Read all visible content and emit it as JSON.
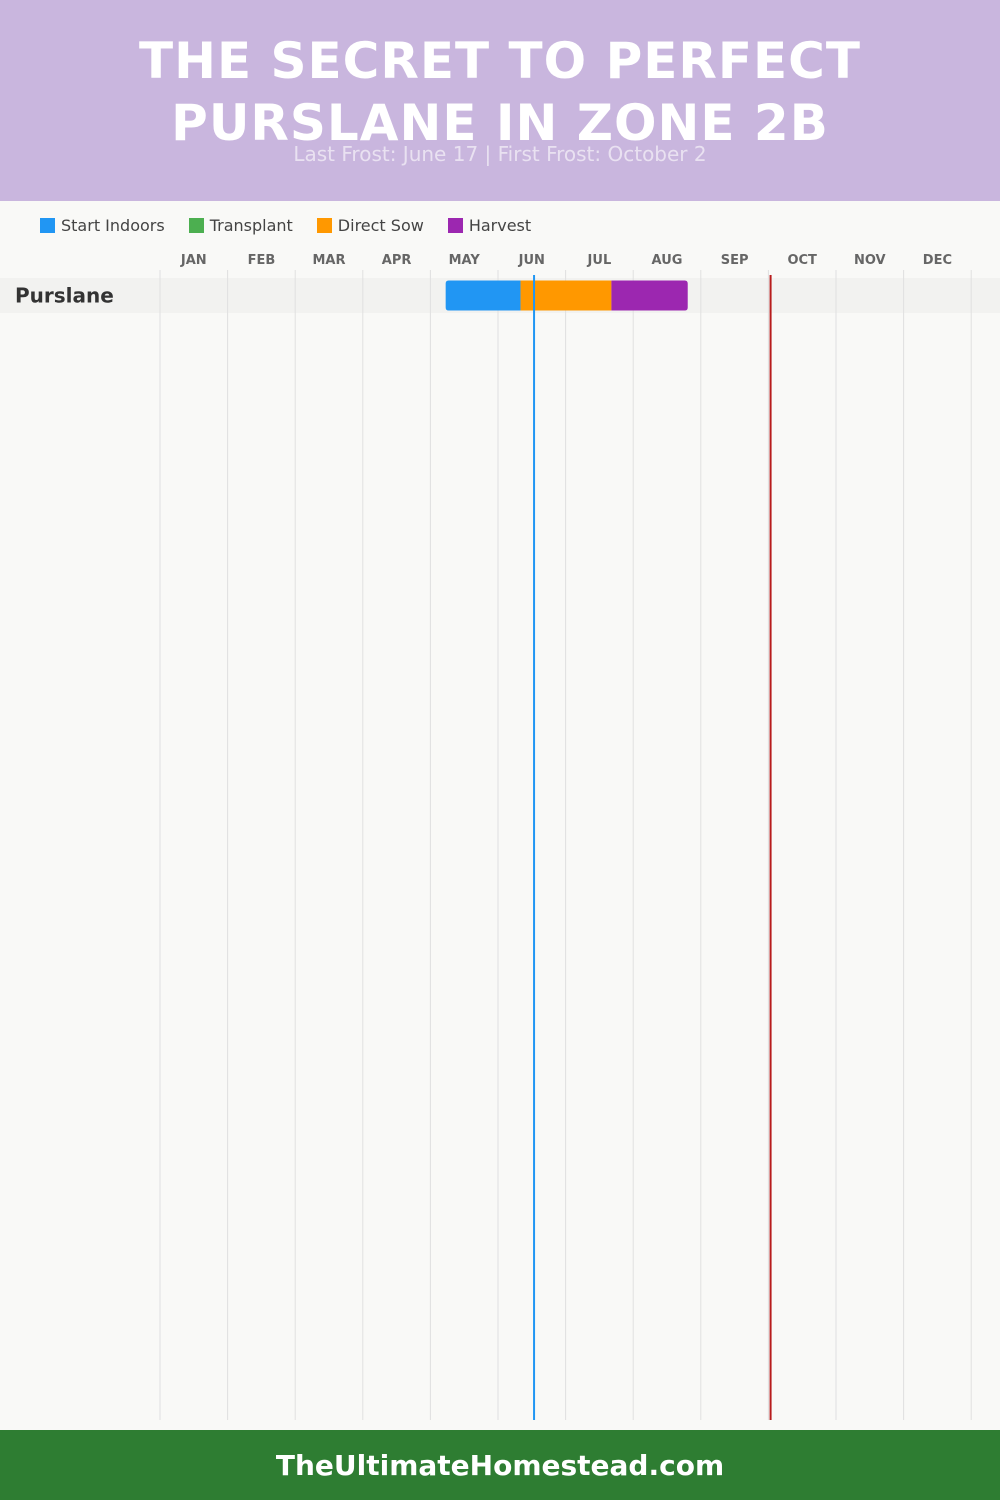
{
  "header": {
    "title": "THE SECRET TO PERFECT PURSLANE IN ZONE 2B",
    "subtitle": "Last Frost: June 17 | First Frost: October 2"
  },
  "legend": [
    {
      "label": "Start Indoors",
      "color": "#2196f3"
    },
    {
      "label": "Transplant",
      "color": "#4caf50"
    },
    {
      "label": "Direct Sow",
      "color": "#ff9800"
    },
    {
      "label": "Harvest",
      "color": "#9c27b0"
    }
  ],
  "colors": {
    "header_bg": "#c9b6de",
    "footer_bg": "#2e7d32",
    "last_frost_line": "#2196f3",
    "first_frost_line": "#b71c1c",
    "row_bg": "#f2f2f0",
    "grid": "#e0e0e0"
  },
  "chart_data": {
    "type": "gantt",
    "months": [
      "JAN",
      "FEB",
      "MAR",
      "APR",
      "MAY",
      "JUN",
      "JUL",
      "AUG",
      "SEP",
      "OCT",
      "NOV",
      "DEC"
    ],
    "rows": [
      {
        "name": "Purslane",
        "bars": [
          {
            "type": "Start Indoors",
            "start": "May 8",
            "end": "Jun 11"
          },
          {
            "type": "Direct Sow",
            "start": "Jun 11",
            "end": "Jul 22"
          },
          {
            "type": "Harvest",
            "start": "Jul 22",
            "end": "Aug 26"
          }
        ]
      }
    ],
    "markers": [
      {
        "label": "Last Frost",
        "date": "June 17"
      },
      {
        "label": "First Frost",
        "date": "October 2"
      }
    ]
  },
  "footer": {
    "text": "TheUltimateHomestead.com"
  }
}
